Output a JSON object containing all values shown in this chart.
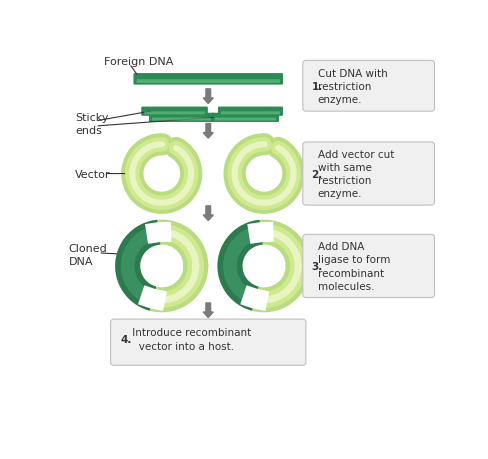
{
  "bg_color": "#ffffff",
  "dna_dark": "#2d8a55",
  "dna_mid": "#3aa864",
  "dna_light": "#6dcc88",
  "ring_outer": "#b8dd80",
  "ring_mid": "#d0e890",
  "ring_inner_light": "#e8f5c0",
  "ring_dark_insert": "#2d7a50",
  "ring_dark_mid": "#3a9060",
  "arrow_color": "#7a7a7a",
  "box_bg": "#f0f0f0",
  "box_edge": "#c0c0c0",
  "text_color": "#333333",
  "label_color": "#333333",
  "step1_bold": "1.",
  "step1_rest": " Cut DNA with\n   restriction\n   enzyme.",
  "step2_bold": "2.",
  "step2_rest": " Add vector cut\n   with same\n   restriction\n   enzyme.",
  "step3_bold": "3.",
  "step3_rest": " Add DNA\n   ligase to form\n   recombinant\n   molecules.",
  "step4_bold": "4.",
  "step4_rest": " Introduce recombinant\n   vector into a host.",
  "foreign_dna_label": "Foreign DNA",
  "sticky_ends_label": "Sticky\nends",
  "vector_label": "Vector",
  "cloned_dna_label": "Cloned\nDNA"
}
